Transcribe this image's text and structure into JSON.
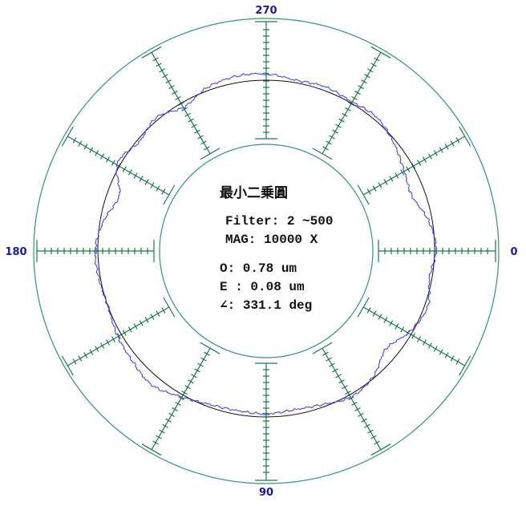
{
  "chart_data": {
    "type": "polar-roundness",
    "angle_labels": {
      "right": "0",
      "bottom": "90",
      "left": "180",
      "top": "270"
    },
    "spoke_angles_deg": [
      0,
      30,
      60,
      90,
      120,
      150,
      180,
      210,
      240,
      270,
      300,
      330
    ],
    "info": {
      "method": "最小二乗圓",
      "filter": "Filter: 2 ~500",
      "mag": "MAG: 10000  X",
      "roundness": "O: 0.78 um",
      "eccentricity": "E : 0.08 um",
      "angle": "∠: 331.1 deg"
    },
    "profile": {
      "angles_deg": [
        0,
        10,
        20,
        30,
        40,
        50,
        60,
        70,
        80,
        90,
        100,
        110,
        120,
        130,
        140,
        150,
        160,
        170,
        180,
        190,
        200,
        210,
        220,
        230,
        240,
        250,
        260,
        270,
        280,
        290,
        300,
        310,
        320,
        330,
        340,
        350
      ],
      "deviation_um": [
        0.05,
        -0.08,
        0.1,
        -0.08,
        -0.38,
        -0.05,
        0.08,
        -0.08,
        -0.15,
        -0.1,
        -0.12,
        -0.08,
        0.08,
        0.3,
        0.2,
        0.12,
        0.0,
        0.05,
        0.08,
        -0.12,
        -0.38,
        0.1,
        -0.08,
        0.08,
        -0.15,
        0.1,
        0.2,
        0.2,
        0.08,
        0.12,
        0.05,
        0.1,
        -0.08,
        -0.3,
        -0.42,
        -0.12
      ]
    },
    "colors": {
      "grid": "#2f9a66",
      "spoke": "#1b7a48",
      "profile": "#3535ff",
      "reference_circle": "#111111",
      "labels": "#1a1aa0"
    }
  }
}
